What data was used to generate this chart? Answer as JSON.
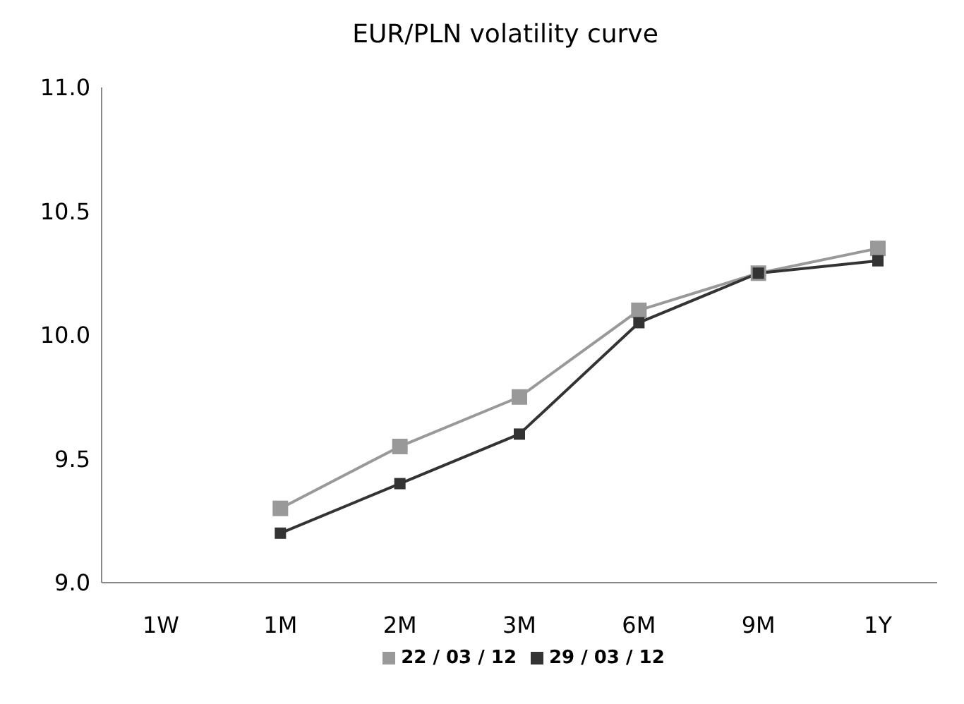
{
  "chart_data": {
    "type": "line",
    "title": "EUR/PLN volatility curve",
    "categories": [
      "1W",
      "1M",
      "2M",
      "3M",
      "6M",
      "9M",
      "1Y"
    ],
    "series": [
      {
        "name": "22 / 03 / 12",
        "color": "#999999",
        "values": [
          null,
          9.3,
          9.55,
          9.75,
          10.1,
          10.25,
          10.35
        ]
      },
      {
        "name": "29 / 03 / 12",
        "color": "#333333",
        "values": [
          null,
          9.2,
          9.4,
          9.6,
          10.05,
          10.25,
          10.3
        ]
      }
    ],
    "ylim": [
      9,
      11
    ],
    "yticks": [
      {
        "value": 9,
        "label": "9.0"
      },
      9.5,
      {
        "value": 10,
        "label": "10.0"
      },
      10.5,
      {
        "value": 11,
        "label": "11.0"
      }
    ],
    "grid": false,
    "legend": "bottom",
    "marker": "square",
    "line_style": "solid"
  }
}
